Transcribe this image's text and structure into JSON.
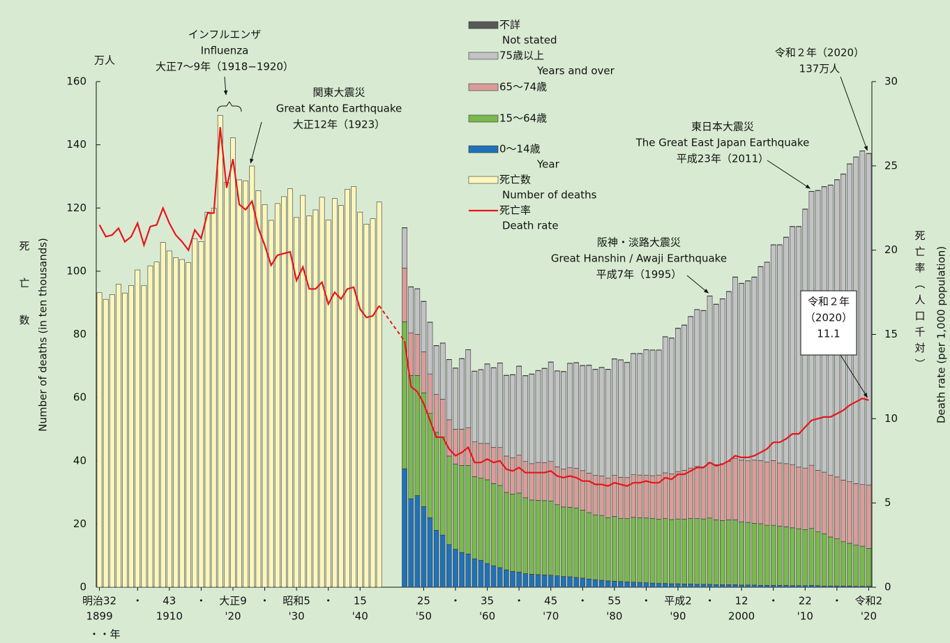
{
  "chart_data": {
    "type": "bar",
    "y_unit": "万人",
    "y_label_ja": "死亡数",
    "y_label": "Number of deaths (in ten thousands)",
    "y2_label_ja": "死亡率（人口千対）",
    "y2_label": "Death rate (per 1,000 population)",
    "x_unit": "・・年",
    "xlim": [
      1898.5,
      2020.5
    ],
    "ylim": [
      0,
      160
    ],
    "yticks": [
      0,
      20,
      40,
      60,
      80,
      100,
      120,
      140,
      160
    ],
    "y2lim": [
      0,
      30
    ],
    "y2ticks": [
      0,
      5,
      10,
      15,
      20,
      25,
      30
    ],
    "xticks": [
      {
        "value": 1899,
        "label": "明治32"
      },
      {
        "value": 1905,
        "label": "・"
      },
      {
        "value": 1910,
        "label": "43"
      },
      {
        "value": 1915,
        "label": "・"
      },
      {
        "value": 1920,
        "label": "大正9"
      },
      {
        "value": 1925,
        "label": "・"
      },
      {
        "value": 1930,
        "label": "昭和5"
      },
      {
        "value": 1935,
        "label": "・"
      },
      {
        "value": 1940,
        "label": "15"
      },
      {
        "value": 1950,
        "label": "25"
      },
      {
        "value": 1955,
        "label": "・"
      },
      {
        "value": 1960,
        "label": "35"
      },
      {
        "value": 1965,
        "label": "・"
      },
      {
        "value": 1970,
        "label": "45"
      },
      {
        "value": 1975,
        "label": "・"
      },
      {
        "value": 1980,
        "label": "55"
      },
      {
        "value": 1985,
        "label": "・"
      },
      {
        "value": 1990,
        "label": "平成2"
      },
      {
        "value": 1995,
        "label": "・"
      },
      {
        "value": 2000,
        "label": "12"
      },
      {
        "value": 2005,
        "label": "・"
      },
      {
        "value": 2010,
        "label": "22"
      },
      {
        "value": 2015,
        "label": "・"
      },
      {
        "value": 2020,
        "label": "令和2"
      }
    ],
    "xticks_secondary": [
      {
        "value": 1899,
        "label": "1899"
      },
      {
        "value": 1910,
        "label": "1910"
      },
      {
        "value": 1920,
        "label": "'20"
      },
      {
        "value": 1930,
        "label": "'30"
      },
      {
        "value": 1940,
        "label": "'40"
      },
      {
        "value": 1950,
        "label": "'50"
      },
      {
        "value": 1960,
        "label": "'60"
      },
      {
        "value": 1970,
        "label": "'70"
      },
      {
        "value": 1980,
        "label": "'80"
      },
      {
        "value": 1990,
        "label": "'90"
      },
      {
        "value": 2000,
        "label": "2000"
      },
      {
        "value": 2010,
        "label": "'10"
      },
      {
        "value": 2020,
        "label": "'20"
      }
    ],
    "x": [
      1899,
      1900,
      1901,
      1902,
      1903,
      1904,
      1905,
      1906,
      1907,
      1908,
      1909,
      1910,
      1911,
      1912,
      1913,
      1914,
      1915,
      1916,
      1917,
      1918,
      1919,
      1920,
      1921,
      1922,
      1923,
      1924,
      1925,
      1926,
      1927,
      1928,
      1929,
      1930,
      1931,
      1932,
      1933,
      1934,
      1935,
      1936,
      1937,
      1938,
      1939,
      1940,
      1941,
      1942,
      1943,
      1944,
      1945,
      1946,
      1947,
      1948,
      1949,
      1950,
      1951,
      1952,
      1953,
      1954,
      1955,
      1956,
      1957,
      1958,
      1959,
      1960,
      1961,
      1962,
      1963,
      1964,
      1965,
      1966,
      1967,
      1968,
      1969,
      1970,
      1971,
      1972,
      1973,
      1974,
      1975,
      1976,
      1977,
      1978,
      1979,
      1980,
      1981,
      1982,
      1983,
      1984,
      1985,
      1986,
      1987,
      1988,
      1989,
      1990,
      1991,
      1992,
      1993,
      1994,
      1995,
      1996,
      1997,
      1998,
      1999,
      2000,
      2001,
      2002,
      2003,
      2004,
      2005,
      2006,
      2007,
      2008,
      2009,
      2010,
      2011,
      2012,
      2013,
      2014,
      2015,
      2016,
      2017,
      2018,
      2019,
      2020
    ],
    "series": [
      {
        "name": "死亡数",
        "name_en": "Number of deaths",
        "type": "bar",
        "color": "#fcf6bd",
        "values": [
          93.2,
          91.1,
          92.6,
          95.9,
          93.1,
          95.5,
          100.4,
          95.5,
          101.7,
          102.9,
          109.1,
          106.4,
          104.3,
          103.7,
          102.7,
          110.2,
          109.4,
          118.7,
          119.9,
          149.3,
          128.1,
          142.2,
          128.9,
          128.6,
          133.3,
          125.5,
          121.1,
          116.1,
          121.4,
          123.6,
          126.1,
          117.0,
          124.0,
          117.5,
          119.4,
          123.4,
          116.2,
          123.0,
          120.8,
          125.9,
          126.8,
          118.7,
          114.9,
          116.6,
          121.9,
          null,
          null,
          null,
          null,
          null,
          null,
          null,
          null,
          null,
          null,
          null,
          null,
          null,
          null,
          null,
          null,
          null,
          null,
          null,
          null,
          null,
          null,
          null,
          null,
          null,
          null,
          null,
          null,
          null,
          null,
          null,
          null,
          null,
          null,
          null,
          null,
          null,
          null,
          null,
          null,
          null,
          null,
          null,
          null,
          null,
          null,
          null,
          null,
          null,
          null,
          null,
          null,
          null,
          null,
          null,
          null,
          null,
          null,
          null,
          null,
          null,
          null,
          null,
          null,
          null,
          null,
          null,
          null,
          null,
          null,
          null,
          null,
          null,
          null,
          null,
          null,
          null
        ]
      },
      {
        "name": "0〜14歳",
        "name_en": "Year",
        "type": "bar",
        "stack": true,
        "color": "#2072b8",
        "values": [
          null,
          null,
          null,
          null,
          null,
          null,
          null,
          null,
          null,
          null,
          null,
          null,
          null,
          null,
          null,
          null,
          null,
          null,
          null,
          null,
          null,
          null,
          null,
          null,
          null,
          null,
          null,
          null,
          null,
          null,
          null,
          null,
          null,
          null,
          null,
          null,
          null,
          null,
          null,
          null,
          null,
          null,
          null,
          null,
          null,
          null,
          null,
          null,
          37.5,
          28,
          29,
          25.5,
          22,
          18,
          16.5,
          13.5,
          12,
          11,
          10.5,
          9,
          8.5,
          7.5,
          6.8,
          6.2,
          5.5,
          5,
          4.8,
          4.3,
          4.1,
          4,
          3.9,
          3.8,
          3.6,
          3.4,
          3.3,
          3.1,
          2.9,
          2.6,
          2.4,
          2.2,
          2.0,
          1.9,
          1.8,
          1.7,
          1.6,
          1.5,
          1.4,
          1.3,
          1.2,
          1.2,
          1.1,
          1.1,
          1.0,
          1.0,
          0.9,
          0.9,
          0.9,
          0.8,
          0.8,
          0.8,
          0.8,
          0.7,
          0.7,
          0.7,
          0.6,
          0.6,
          0.6,
          0.6,
          0.6,
          0.5,
          0.5,
          0.5,
          0.6,
          0.5,
          0.4,
          0.4,
          0.4,
          0.4,
          0.4,
          0.3,
          0.3,
          0.3
        ]
      },
      {
        "name": "15〜64歳",
        "type": "bar",
        "stack": true,
        "color": "#7bb84f",
        "values": [
          null,
          null,
          null,
          null,
          null,
          null,
          null,
          null,
          null,
          null,
          null,
          null,
          null,
          null,
          null,
          null,
          null,
          null,
          null,
          null,
          null,
          null,
          null,
          null,
          null,
          null,
          null,
          null,
          null,
          null,
          null,
          null,
          null,
          null,
          null,
          null,
          null,
          null,
          null,
          null,
          null,
          null,
          null,
          null,
          null,
          null,
          null,
          null,
          46.5,
          39,
          38,
          36,
          33,
          31,
          31,
          28,
          27,
          27.5,
          28,
          26,
          26,
          26.5,
          26,
          26,
          24.5,
          24.5,
          25,
          24,
          23.5,
          23.5,
          23.5,
          23.5,
          22.5,
          22,
          22,
          22,
          21.5,
          21,
          20.5,
          20.5,
          20,
          20.5,
          20,
          20,
          20.5,
          20.5,
          20.5,
          20.5,
          20.3,
          20.5,
          20.3,
          20.5,
          20.5,
          20.7,
          20.8,
          20.7,
          21,
          20.5,
          20.3,
          20.5,
          20.5,
          20,
          19.8,
          19.5,
          19.5,
          19,
          19,
          18.7,
          18.5,
          18.3,
          18,
          17.7,
          18,
          17,
          16.5,
          15.5,
          15,
          14,
          13.5,
          13,
          12.7,
          12
        ]
      },
      {
        "name": "65〜74歳",
        "type": "bar",
        "stack": true,
        "color": "#d99c9a",
        "values": [
          null,
          null,
          null,
          null,
          null,
          null,
          null,
          null,
          null,
          null,
          null,
          null,
          null,
          null,
          null,
          null,
          null,
          null,
          null,
          null,
          null,
          null,
          null,
          null,
          null,
          null,
          null,
          null,
          null,
          null,
          null,
          null,
          null,
          null,
          null,
          null,
          null,
          null,
          null,
          null,
          null,
          null,
          null,
          null,
          null,
          null,
          null,
          null,
          17,
          13.5,
          13,
          13,
          12.5,
          12,
          12,
          11.5,
          11,
          11.5,
          12,
          11,
          11,
          11.5,
          11.5,
          12,
          11.5,
          11.5,
          12,
          11.5,
          11.5,
          12,
          12,
          12.5,
          12,
          12,
          12.5,
          12.5,
          12.5,
          12.5,
          12.5,
          12.5,
          12.5,
          13,
          13,
          13,
          13.5,
          13.5,
          13.5,
          13.5,
          14,
          14.5,
          14.5,
          15,
          15.5,
          16,
          16.5,
          16.5,
          17.5,
          17.5,
          18,
          18.5,
          19.5,
          19.5,
          19.5,
          20,
          20,
          20,
          20.5,
          20,
          20,
          20,
          19.5,
          19.5,
          20,
          19.5,
          19.5,
          19.5,
          19.5,
          19.5,
          19.5,
          19.5,
          19.5,
          20
        ]
      },
      {
        "name": "75歳以上",
        "name_en": "Years and over",
        "type": "bar",
        "stack": true,
        "color": "#c3c3c6",
        "values": [
          null,
          null,
          null,
          null,
          null,
          null,
          null,
          null,
          null,
          null,
          null,
          null,
          null,
          null,
          null,
          null,
          null,
          null,
          null,
          null,
          null,
          null,
          null,
          null,
          null,
          null,
          null,
          null,
          null,
          null,
          null,
          null,
          null,
          null,
          null,
          null,
          null,
          null,
          null,
          null,
          null,
          null,
          null,
          null,
          null,
          null,
          null,
          null,
          12.7,
          14.5,
          14.4,
          15.9,
          16.3,
          15.4,
          17.7,
          19.0,
          19.3,
          22.3,
          24.6,
          22.3,
          23.3,
          25.1,
          25.1,
          26.7,
          25.5,
          26.2,
          28.1,
          27.1,
          28.3,
          29.0,
          29.8,
          31.4,
          30.3,
          30.8,
          33.0,
          33.4,
          33.2,
          34.1,
          33.5,
          34.3,
          34.4,
          36.8,
          37.1,
          36.4,
          38.3,
          38.4,
          39.7,
          39.7,
          39.5,
          43.0,
          42.9,
          45.3,
          45.9,
          47.9,
          49.6,
          49.4,
          52.7,
          50.7,
          52.1,
          53.7,
          57.3,
          55.9,
          56.9,
          57.9,
          61.3,
          63.2,
          68.2,
          69.0,
          71.6,
          75.3,
          76.1,
          81.9,
          86.6,
          88.5,
          90.3,
          91.8,
          94.0,
          96.8,
          100.5,
          103.3,
          105.5,
          104.9
        ]
      },
      {
        "name": "不詳",
        "name_en": "Not stated",
        "type": "bar",
        "stack": true,
        "color": "#595959",
        "values": [
          null,
          null,
          null,
          null,
          null,
          null,
          null,
          null,
          null,
          null,
          null,
          null,
          null,
          null,
          null,
          null,
          null,
          null,
          null,
          null,
          null,
          null,
          null,
          null,
          null,
          null,
          null,
          null,
          null,
          null,
          null,
          null,
          null,
          null,
          null,
          null,
          null,
          null,
          null,
          null,
          null,
          null,
          null,
          null,
          null,
          null,
          null,
          null,
          0.1,
          0.1,
          0.1,
          0.1,
          0.1,
          0.1,
          0.1,
          0.1,
          0.1,
          0.1,
          0.1,
          0.1,
          0.1,
          0.1,
          0.1,
          0.1,
          0.1,
          0.1,
          0.1,
          0.1,
          0.1,
          0.1,
          0.1,
          0.1,
          0.1,
          0.1,
          0.1,
          0.1,
          0.1,
          0.1,
          0.1,
          0.1,
          0.1,
          0.1,
          0.1,
          0.1,
          0.1,
          0.1,
          0.1,
          0.1,
          0.1,
          0.1,
          0.1,
          0.1,
          0.1,
          0.1,
          0.1,
          0.1,
          0.1,
          0.1,
          0.1,
          0.1,
          0.1,
          0.1,
          0.1,
          0.1,
          0.1,
          0.1,
          0.1,
          0.1,
          0.1,
          0.1,
          0.1,
          0.1,
          0.1,
          0.1,
          0.1,
          0.1,
          0.1,
          0.1,
          0.1,
          0.1,
          0.1,
          0.1
        ]
      },
      {
        "name": "死亡率",
        "name_en": "Death rate",
        "type": "line",
        "axis": "y2",
        "color": "#e8141b",
        "values": [
          21.5,
          20.8,
          20.9,
          21.3,
          20.5,
          20.8,
          21.6,
          20.3,
          21.4,
          21.5,
          22.5,
          21.6,
          20.9,
          20.5,
          20.0,
          21.2,
          20.7,
          22.2,
          22.2,
          27.3,
          23.7,
          25.4,
          22.7,
          22.4,
          22.9,
          21.3,
          20.3,
          19.1,
          19.7,
          19.8,
          19.9,
          18.2,
          19.0,
          17.7,
          17.7,
          18.1,
          16.8,
          17.5,
          17.1,
          17.7,
          17.8,
          16.5,
          16.0,
          16.1,
          16.7,
          null,
          null,
          null,
          14.6,
          11.9,
          11.6,
          10.9,
          9.9,
          8.9,
          8.9,
          8.2,
          7.8,
          8.0,
          8.3,
          7.4,
          7.4,
          7.6,
          7.4,
          7.5,
          7.0,
          6.9,
          7.1,
          6.8,
          6.8,
          6.8,
          6.8,
          6.9,
          6.6,
          6.5,
          6.6,
          6.5,
          6.3,
          6.3,
          6.1,
          6.1,
          6.0,
          6.2,
          6.1,
          6.0,
          6.2,
          6.2,
          6.3,
          6.2,
          6.2,
          6.5,
          6.4,
          6.7,
          6.7,
          6.9,
          7.1,
          7.1,
          7.4,
          7.2,
          7.3,
          7.5,
          7.8,
          7.7,
          7.7,
          7.8,
          8.0,
          8.2,
          8.6,
          8.6,
          8.8,
          9.1,
          9.1,
          9.5,
          9.9,
          10.0,
          10.1,
          10.1,
          10.3,
          10.5,
          10.8,
          11.0,
          11.2,
          11.1
        ]
      }
    ],
    "annotations": [
      {
        "lines": [
          "インフルエンザ",
          "Influenza",
          "大正7〜9年（1918−1920）"
        ]
      },
      {
        "lines": [
          "関東大震災",
          "Great Kanto Earthquake",
          "大正12年（1923）"
        ]
      },
      {
        "lines": [
          "阪神・淡路大震災",
          "Great Hanshin / Awaji Earthquake",
          "平成7年（1995）"
        ]
      },
      {
        "lines": [
          "東日本大震災",
          "The Great East Japan Earthquake",
          "平成23年（2011）"
        ]
      },
      {
        "lines": [
          "令和２年（2020）",
          "137万人"
        ]
      },
      {
        "lines": [
          "令和２年",
          "（2020）",
          "11.1"
        ]
      }
    ]
  }
}
